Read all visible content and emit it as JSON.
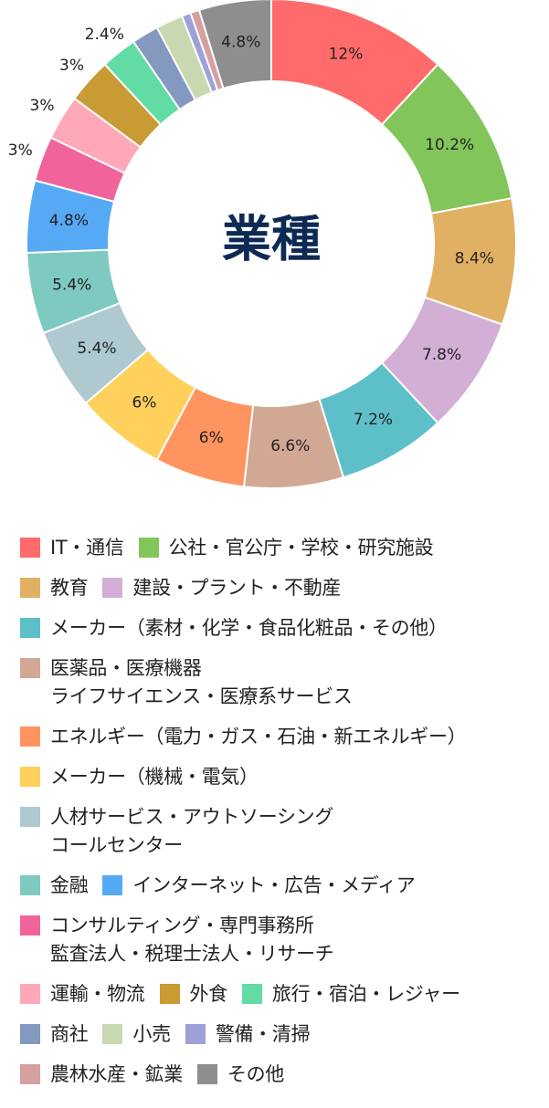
{
  "chart_data": {
    "type": "pie",
    "title": "業種",
    "series": [
      {
        "name": "IT・通信",
        "label": "12%",
        "value": 12,
        "color": "#ff6b6b"
      },
      {
        "name": "公社・官公庁・学校・研究施設",
        "label": "10.2%",
        "value": 10.2,
        "color": "#82c55a"
      },
      {
        "name": "教育",
        "label": "8.4%",
        "value": 8.4,
        "color": "#e0b063"
      },
      {
        "name": "建設・プラント・不動産",
        "label": "7.8%",
        "value": 7.8,
        "color": "#d3afd6"
      },
      {
        "name": "メーカー（素材・化学・食品化粧品・その他）",
        "label": "7.2%",
        "value": 7.2,
        "color": "#5dc0c8"
      },
      {
        "name": "医薬品・医療機器\nライフサイエンス・医療系サービス",
        "label": "6.6%",
        "value": 6.6,
        "color": "#d1a894"
      },
      {
        "name": "エネルギー（電力・ガス・石油・新エネルギー）",
        "label": "6%",
        "value": 6,
        "color": "#ff9461"
      },
      {
        "name": "メーカー（機械・電気）",
        "label": "6%",
        "value": 6,
        "color": "#ffd05c"
      },
      {
        "name": "人材サービス・アウトソーシング\nコールセンター",
        "label": "5.4%",
        "value": 5.4,
        "color": "#aec9d0"
      },
      {
        "name": "金融",
        "label": "5.4%",
        "value": 5.4,
        "color": "#7fcac0"
      },
      {
        "name": "インターネット・広告・メディア",
        "label": "4.8%",
        "value": 4.8,
        "color": "#56aaf5"
      },
      {
        "name": "コンサルティング・専門事務所\n監査法人・税理士法人・リサーチ",
        "label": "3%",
        "value": 3,
        "color": "#f0649b"
      },
      {
        "name": "運輸・物流",
        "label": "3%",
        "value": 3,
        "color": "#ffa8b8"
      },
      {
        "name": "外食",
        "label": "3%",
        "value": 3,
        "color": "#c89b35"
      },
      {
        "name": "旅行・宿泊・レジャー",
        "label": "2.4%",
        "value": 2.4,
        "color": "#62dca4"
      },
      {
        "name": "商社",
        "label": "",
        "value": 1.8,
        "color": "#8499c0"
      },
      {
        "name": "小売",
        "label": "",
        "value": 1.8,
        "color": "#c8d8b0"
      },
      {
        "name": "警備・清掃",
        "label": "",
        "value": 0.6,
        "color": "#a0a0d8"
      },
      {
        "name": "農林水産・鉱業",
        "label": "",
        "value": 0.6,
        "color": "#d4a0a0"
      },
      {
        "name": "その他",
        "label": "4.8%",
        "value": 4.8,
        "color": "#8e8e8e"
      }
    ],
    "legend_rows": [
      [
        0,
        1
      ],
      [
        2,
        3
      ],
      [
        4
      ],
      [
        5
      ],
      [
        6
      ],
      [
        7
      ],
      [
        8
      ],
      [
        9,
        10
      ],
      [
        11
      ],
      [
        12,
        13,
        14
      ],
      [
        15,
        16,
        17
      ],
      [
        18,
        19
      ]
    ]
  }
}
